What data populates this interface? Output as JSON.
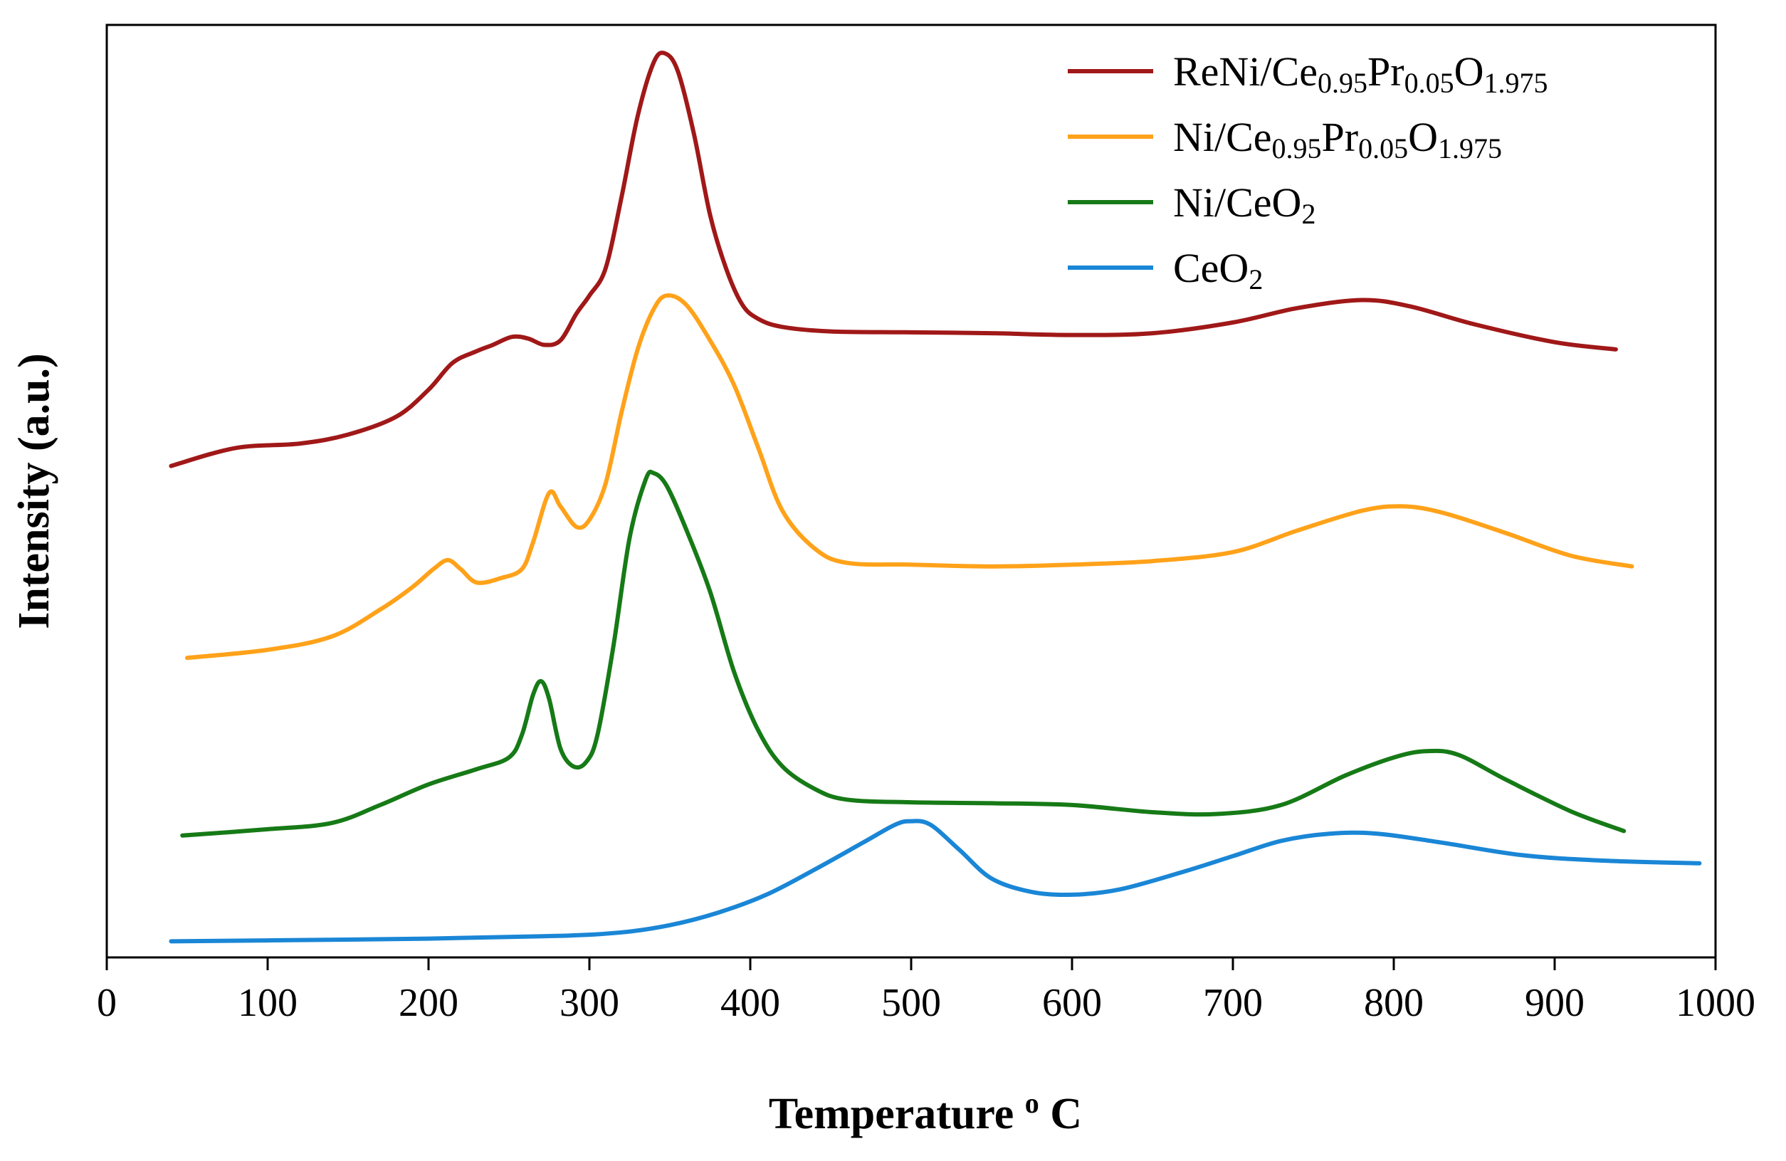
{
  "chart_data": {
    "type": "line",
    "title": "",
    "xlabel": "Temperature",
    "xlabel_unit_sup": "o",
    "xlabel_unit": "C",
    "ylabel": "Intensity (a.u.)",
    "xlim": [
      0,
      1000
    ],
    "ylim": [
      0,
      1
    ],
    "x_ticks": [
      "0",
      "100",
      "200",
      "300",
      "400",
      "500",
      "600",
      "700",
      "800",
      "900",
      "1000"
    ],
    "y_ticks_visible": false,
    "grid": false,
    "legend_position": "top-right",
    "series": [
      {
        "name": "ReNi/Ce0.95Pr0.05O1.975",
        "label_parts": [
          [
            "ReNi/Ce",
            ""
          ],
          [
            "0.95",
            "sub"
          ],
          [
            "Pr",
            ""
          ],
          [
            "0.05",
            "sub"
          ],
          [
            "O",
            ""
          ],
          [
            "1.975",
            "sub"
          ]
        ],
        "color": "#A01818",
        "points": [
          [
            40,
            0.54
          ],
          [
            80,
            0.56
          ],
          [
            120,
            0.565
          ],
          [
            150,
            0.575
          ],
          [
            180,
            0.595
          ],
          [
            200,
            0.625
          ],
          [
            215,
            0.655
          ],
          [
            230,
            0.668
          ],
          [
            240,
            0.675
          ],
          [
            252,
            0.684
          ],
          [
            262,
            0.682
          ],
          [
            272,
            0.675
          ],
          [
            282,
            0.68
          ],
          [
            292,
            0.71
          ],
          [
            300,
            0.73
          ],
          [
            310,
            0.76
          ],
          [
            320,
            0.84
          ],
          [
            330,
            0.93
          ],
          [
            340,
            0.99
          ],
          [
            347,
            1.0
          ],
          [
            355,
            0.98
          ],
          [
            365,
            0.91
          ],
          [
            375,
            0.82
          ],
          [
            385,
            0.76
          ],
          [
            395,
            0.72
          ],
          [
            405,
            0.704
          ],
          [
            420,
            0.695
          ],
          [
            450,
            0.69
          ],
          [
            500,
            0.689
          ],
          [
            550,
            0.688
          ],
          [
            600,
            0.686
          ],
          [
            650,
            0.688
          ],
          [
            700,
            0.7
          ],
          [
            740,
            0.716
          ],
          [
            780,
            0.725
          ],
          [
            810,
            0.718
          ],
          [
            850,
            0.698
          ],
          [
            900,
            0.678
          ],
          [
            938,
            0.67
          ]
        ]
      },
      {
        "name": "Ni/Ce0.95Pr0.05O1.975",
        "label_parts": [
          [
            "Ni/Ce",
            ""
          ],
          [
            "0.95",
            "sub"
          ],
          [
            "Pr",
            ""
          ],
          [
            "0.05",
            "sub"
          ],
          [
            "O",
            ""
          ],
          [
            "1.975",
            "sub"
          ]
        ],
        "color": "#FFA21A",
        "points": [
          [
            50,
            0.326
          ],
          [
            100,
            0.335
          ],
          [
            140,
            0.35
          ],
          [
            170,
            0.38
          ],
          [
            190,
            0.405
          ],
          [
            203,
            0.425
          ],
          [
            212,
            0.435
          ],
          [
            220,
            0.425
          ],
          [
            230,
            0.41
          ],
          [
            245,
            0.415
          ],
          [
            258,
            0.425
          ],
          [
            265,
            0.455
          ],
          [
            275,
            0.51
          ],
          [
            282,
            0.495
          ],
          [
            292,
            0.472
          ],
          [
            300,
            0.48
          ],
          [
            310,
            0.52
          ],
          [
            320,
            0.6
          ],
          [
            330,
            0.67
          ],
          [
            340,
            0.715
          ],
          [
            348,
            0.73
          ],
          [
            360,
            0.72
          ],
          [
            375,
            0.68
          ],
          [
            390,
            0.63
          ],
          [
            405,
            0.56
          ],
          [
            420,
            0.49
          ],
          [
            440,
            0.448
          ],
          [
            460,
            0.432
          ],
          [
            500,
            0.43
          ],
          [
            550,
            0.428
          ],
          [
            600,
            0.43
          ],
          [
            650,
            0.434
          ],
          [
            700,
            0.444
          ],
          [
            740,
            0.468
          ],
          [
            780,
            0.49
          ],
          [
            805,
            0.495
          ],
          [
            830,
            0.488
          ],
          [
            870,
            0.465
          ],
          [
            910,
            0.44
          ],
          [
            948,
            0.428
          ]
        ]
      },
      {
        "name": "Ni/CeO2",
        "label_parts": [
          [
            "Ni/CeO",
            ""
          ],
          [
            "2",
            "sub"
          ]
        ],
        "color": "#167A16",
        "points": [
          [
            47,
            0.128
          ],
          [
            100,
            0.135
          ],
          [
            140,
            0.142
          ],
          [
            170,
            0.162
          ],
          [
            200,
            0.185
          ],
          [
            230,
            0.202
          ],
          [
            250,
            0.215
          ],
          [
            258,
            0.24
          ],
          [
            265,
            0.285
          ],
          [
            270,
            0.3
          ],
          [
            275,
            0.28
          ],
          [
            282,
            0.225
          ],
          [
            290,
            0.205
          ],
          [
            298,
            0.21
          ],
          [
            305,
            0.24
          ],
          [
            315,
            0.34
          ],
          [
            325,
            0.46
          ],
          [
            335,
            0.525
          ],
          [
            340,
            0.532
          ],
          [
            348,
            0.518
          ],
          [
            360,
            0.47
          ],
          [
            375,
            0.4
          ],
          [
            390,
            0.31
          ],
          [
            405,
            0.245
          ],
          [
            420,
            0.205
          ],
          [
            440,
            0.18
          ],
          [
            460,
            0.168
          ],
          [
            500,
            0.165
          ],
          [
            550,
            0.164
          ],
          [
            600,
            0.162
          ],
          [
            650,
            0.154
          ],
          [
            690,
            0.152
          ],
          [
            730,
            0.162
          ],
          [
            770,
            0.195
          ],
          [
            800,
            0.215
          ],
          [
            820,
            0.222
          ],
          [
            840,
            0.218
          ],
          [
            870,
            0.19
          ],
          [
            910,
            0.155
          ],
          [
            943,
            0.133
          ]
        ]
      },
      {
        "name": "CeO2",
        "label_parts": [
          [
            "CeO",
            ""
          ],
          [
            "2",
            "sub"
          ]
        ],
        "color": "#1A86D6",
        "points": [
          [
            40,
            0.01
          ],
          [
            100,
            0.011
          ],
          [
            200,
            0.013
          ],
          [
            280,
            0.016
          ],
          [
            320,
            0.02
          ],
          [
            350,
            0.028
          ],
          [
            380,
            0.042
          ],
          [
            410,
            0.062
          ],
          [
            440,
            0.09
          ],
          [
            470,
            0.12
          ],
          [
            490,
            0.14
          ],
          [
            500,
            0.144
          ],
          [
            512,
            0.14
          ],
          [
            530,
            0.112
          ],
          [
            550,
            0.08
          ],
          [
            575,
            0.065
          ],
          [
            600,
            0.062
          ],
          [
            630,
            0.068
          ],
          [
            670,
            0.088
          ],
          [
            700,
            0.105
          ],
          [
            730,
            0.122
          ],
          [
            760,
            0.13
          ],
          [
            790,
            0.13
          ],
          [
            830,
            0.12
          ],
          [
            880,
            0.106
          ],
          [
            930,
            0.1
          ],
          [
            990,
            0.097
          ]
        ]
      }
    ]
  }
}
